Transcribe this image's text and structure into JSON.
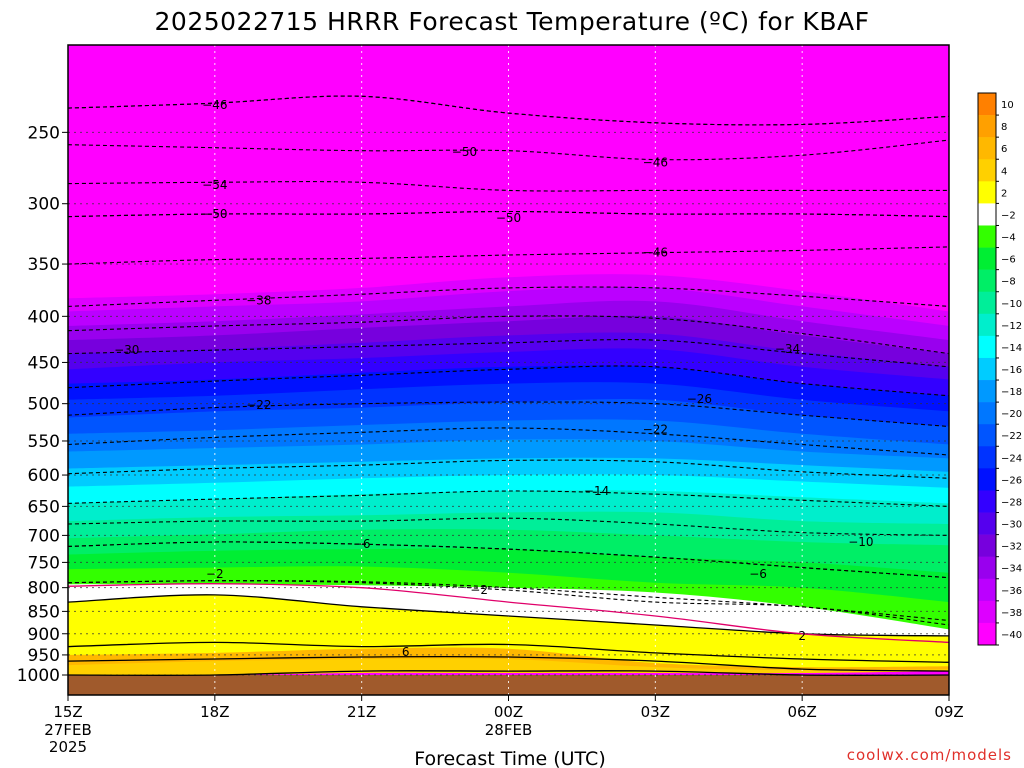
{
  "page": {
    "title": "2025022715 HRRR Forecast Temperature (ºC) for KBAF",
    "credit": "coolwx.com/models"
  },
  "chart_data": {
    "type": "heatmap",
    "title": "2025022715 HRRR Forecast Temperature (ºC) for KBAF",
    "xlabel": "Forecast Time (UTC)",
    "ylabel": "",
    "x_ticks": [
      {
        "label": "15Z",
        "sub": [
          "27FEB",
          "2025"
        ]
      },
      {
        "label": "18Z",
        "sub": []
      },
      {
        "label": "21Z",
        "sub": []
      },
      {
        "label": "00Z",
        "sub": [
          "28FEB"
        ]
      },
      {
        "label": "03Z",
        "sub": []
      },
      {
        "label": "06Z",
        "sub": []
      },
      {
        "label": "09Z",
        "sub": []
      }
    ],
    "y_axis": {
      "scale": "log-pressure",
      "inverted": true,
      "range_hPa": [
        1000,
        200
      ],
      "ticks": [
        250,
        300,
        350,
        400,
        450,
        500,
        550,
        600,
        650,
        700,
        750,
        800,
        850,
        900,
        950,
        1000
      ]
    },
    "grid": true,
    "colorbar": {
      "labels": [
        10,
        8,
        6,
        4,
        2,
        -2,
        -4,
        -6,
        -8,
        -10,
        -12,
        -14,
        -16,
        -18,
        -20,
        -22,
        -24,
        -26,
        -28,
        -30,
        -32,
        -34,
        -36,
        -38,
        -40
      ],
      "colors": [
        "#ff8000",
        "#ffa000",
        "#ffb800",
        "#ffd000",
        "#ffff00",
        "#ffffff",
        "#33ff00",
        "#00ee33",
        "#00ee66",
        "#00ee99",
        "#00eecc",
        "#00ffff",
        "#00ccff",
        "#0099ff",
        "#0077ff",
        "#0055ff",
        "#0033ff",
        "#0011ff",
        "#3300ff",
        "#5500ee",
        "#7700dd",
        "#9900ee",
        "#bb00ff",
        "#dd00ff",
        "#ff00ff"
      ]
    },
    "ground_color": "#a05a2c",
    "bands": [
      {
        "p": [
          1000,
          1000,
          1000,
          1000,
          1000,
          1000,
          1000
        ],
        "color": "#a05a2c"
      },
      {
        "p": [
          1000,
          1000,
          995,
          995,
          995,
          995,
          990
        ],
        "color": "#ffd000"
      },
      {
        "p": [
          975,
          965,
          960,
          960,
          980,
          988,
          985
        ],
        "color": "#ffb800"
      },
      {
        "p": [
          950,
          945,
          935,
          935,
          970,
          980,
          978
        ],
        "color": "#ffff00"
      },
      {
        "p": [
          830,
          815,
          840,
          860,
          880,
          900,
          905
        ],
        "color": "#ffffff"
      },
      {
        "p": [
          793,
          793,
          795,
          800,
          810,
          840,
          890
        ],
        "color": "#33ff00"
      },
      {
        "p": [
          763,
          760,
          758,
          770,
          790,
          800,
          830
        ],
        "color": "#00ee33"
      },
      {
        "p": [
          735,
          728,
          725,
          725,
          740,
          750,
          770
        ],
        "color": "#00ee66"
      },
      {
        "p": [
          705,
          698,
          690,
          690,
          700,
          712,
          718
        ],
        "color": "#00ee99"
      },
      {
        "p": [
          675,
          668,
          665,
          660,
          660,
          675,
          680
        ],
        "color": "#00eecc"
      },
      {
        "p": [
          645,
          638,
          630,
          625,
          625,
          635,
          645
        ],
        "color": "#00ffff"
      },
      {
        "p": [
          618,
          612,
          605,
          600,
          600,
          610,
          620
        ],
        "color": "#00ccff"
      },
      {
        "p": [
          590,
          585,
          580,
          575,
          575,
          585,
          595
        ],
        "color": "#0099ff"
      },
      {
        "p": [
          565,
          560,
          555,
          548,
          550,
          565,
          575
        ],
        "color": "#0077ff"
      },
      {
        "p": [
          540,
          535,
          528,
          522,
          522,
          540,
          555
        ],
        "color": "#0055ff"
      },
      {
        "p": [
          518,
          510,
          505,
          498,
          495,
          515,
          530
        ],
        "color": "#0033ff"
      },
      {
        "p": [
          495,
          490,
          482,
          475,
          475,
          495,
          510
        ],
        "color": "#0011ff"
      },
      {
        "p": [
          475,
          470,
          462,
          455,
          455,
          475,
          490
        ],
        "color": "#3300ff"
      },
      {
        "p": [
          458,
          450,
          445,
          438,
          435,
          455,
          470
        ],
        "color": "#5500ee"
      },
      {
        "p": [
          440,
          435,
          428,
          420,
          418,
          438,
          455
        ],
        "color": "#7700dd"
      },
      {
        "p": [
          425,
          420,
          412,
          405,
          400,
          420,
          440
        ],
        "color": "#9900ee"
      },
      {
        "p": [
          410,
          405,
          398,
          390,
          385,
          405,
          425
        ],
        "color": "#bb00ff"
      },
      {
        "p": [
          395,
          390,
          385,
          375,
          372,
          390,
          410
        ],
        "color": "#dd00ff"
      },
      {
        "p": [
          382,
          378,
          372,
          362,
          360,
          375,
          395
        ],
        "color": "#ff00ff"
      }
    ],
    "contours": [
      {
        "value": "10",
        "style": "solid",
        "p": [
          1000,
          1000,
          990,
          990,
          990,
          1000,
          1000
        ],
        "label_at": null
      },
      {
        "value": "6",
        "style": "solid",
        "p": [
          965,
          960,
          955,
          955,
          965,
          985,
          990
        ],
        "label_at": [
          2.3,
          943
        ]
      },
      {
        "value": "2",
        "style": "solid",
        "p": [
          930,
          920,
          930,
          925,
          945,
          960,
          968
        ],
        "label_at": null
      },
      {
        "value": "2",
        "style": "solid",
        "p": [
          830,
          815,
          840,
          860,
          880,
          900,
          905
        ],
        "label_at": [
          5.0,
          905
        ]
      },
      {
        "value": "0",
        "style": "magenta",
        "p": [
          797,
          792,
          800,
          830,
          860,
          900,
          920
        ],
        "label_at": null
      },
      {
        "value": "-2",
        "style": "dashed",
        "p": [
          790,
          786,
          790,
          805,
          830,
          840,
          880
        ],
        "label_at": [
          1.0,
          773
        ]
      },
      {
        "value": "-2",
        "style": "dashed",
        "p": [
          790,
          786,
          788,
          800,
          820,
          840,
          870
        ],
        "label_at": [
          2.8,
          805
        ]
      },
      {
        "value": "-6",
        "style": "dashed",
        "p": [
          720,
          712,
          716,
          725,
          740,
          760,
          780
        ],
        "label_at": [
          4.7,
          773
        ]
      },
      {
        "value": "-6",
        "style": "dashed",
        "p": [
          720,
          712,
          716,
          725,
          740,
          760,
          780
        ],
        "label_at": [
          2.0,
          716
        ]
      },
      {
        "value": "-10",
        "style": "dashed",
        "p": [
          680,
          675,
          675,
          670,
          680,
          695,
          700
        ],
        "label_at": [
          5.4,
          712
        ]
      },
      {
        "value": "-14",
        "style": "dashed",
        "p": [
          645,
          638,
          632,
          625,
          630,
          640,
          650
        ],
        "label_at": [
          3.6,
          625
        ]
      },
      {
        "value": "-18",
        "style": "dashed",
        "p": [
          598,
          590,
          585,
          578,
          580,
          595,
          605
        ],
        "label_at": null
      },
      {
        "value": "-22",
        "style": "dashed",
        "p": [
          555,
          545,
          538,
          532,
          540,
          555,
          570
        ],
        "label_at": [
          1.3,
          502
        ]
      },
      {
        "value": "-22",
        "style": "dashed",
        "p": [
          515,
          505,
          500,
          498,
          500,
          515,
          530
        ],
        "label_at": [
          4.0,
          534
        ]
      },
      {
        "value": "-26",
        "style": "dashed",
        "p": [
          480,
          472,
          465,
          458,
          455,
          475,
          490
        ],
        "label_at": [
          4.3,
          494
        ]
      },
      {
        "value": "-30",
        "style": "dashed",
        "p": [
          440,
          436,
          432,
          428,
          425,
          440,
          455
        ],
        "label_at": [
          0.4,
          436
        ]
      },
      {
        "value": "-34",
        "style": "dashed",
        "p": [
          415,
          410,
          406,
          400,
          402,
          418,
          440
        ],
        "label_at": [
          4.9,
          435
        ]
      },
      {
        "value": "-38",
        "style": "dashed",
        "p": [
          390,
          384,
          378,
          372,
          372,
          380,
          390
        ],
        "label_at": [
          1.3,
          384
        ]
      },
      {
        "value": "-46",
        "style": "dashed",
        "p": [
          350,
          346,
          345,
          342,
          340,
          338,
          335
        ],
        "label_at": [
          4.0,
          340
        ]
      },
      {
        "value": "-50",
        "style": "dashed",
        "p": [
          310,
          308,
          308,
          306,
          308,
          308,
          310
        ],
        "label_at": [
          1.0,
          308
        ]
      },
      {
        "value": "-50",
        "style": "dashed",
        "p": [
          310,
          308,
          308,
          306,
          308,
          308,
          310
        ],
        "label_at": [
          3.0,
          311
        ]
      },
      {
        "value": "-54",
        "style": "dashed",
        "p": [
          285,
          284,
          284,
          290,
          290,
          290,
          290
        ],
        "label_at": [
          1.0,
          286
        ]
      },
      {
        "value": "-50",
        "style": "dashed",
        "p": [
          258,
          260,
          262,
          262,
          268,
          265,
          255
        ],
        "label_at": [
          2.7,
          263
        ]
      },
      {
        "value": "-46",
        "style": "dashed",
        "p": [
          235,
          232,
          228,
          238,
          244,
          245,
          240
        ],
        "label_at": [
          1.0,
          233
        ]
      },
      {
        "value": "-46",
        "style": "dashed",
        "p": [
          235,
          232,
          228,
          238,
          244,
          245,
          240
        ],
        "label_at": [
          4.0,
          270
        ]
      }
    ]
  }
}
